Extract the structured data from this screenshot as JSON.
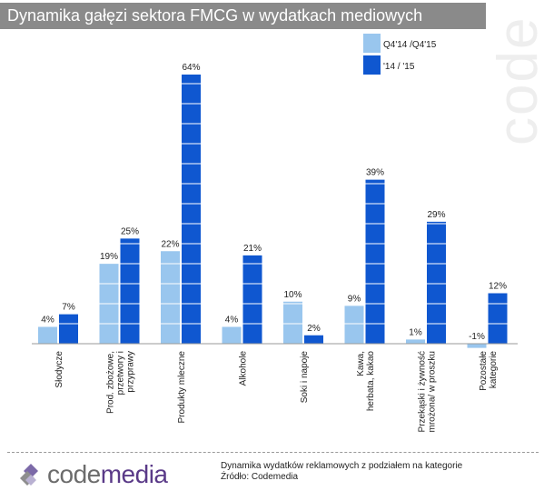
{
  "title": "Dynamika gałęzi sektora FMCG w wydatkach mediowych",
  "colors": {
    "series1": "#99c6ee",
    "series2": "#0f57d0",
    "title_bg": "#8a8a8a",
    "logo_purple": "#5a3a88",
    "logo_grey": "#6c6c6c"
  },
  "chart_data": {
    "type": "bar",
    "title": "Dynamika gałęzi sektora FMCG w wydatkach mediowych",
    "categories": [
      [
        "Słodycze"
      ],
      [
        "Prod. zbożowe,",
        "przetwory i",
        "przyprawy"
      ],
      [
        "Produkty mleczne"
      ],
      [
        "Alkohole"
      ],
      [
        "Soki i napoje"
      ],
      [
        "Kawa,",
        "herbata, kakao"
      ],
      [
        "Przekąski i żywność",
        "mrożona/ w proszku"
      ],
      [
        "Pozostałe",
        "kategorie"
      ]
    ],
    "series": [
      {
        "name": "Q4'14 /Q4'15",
        "values": [
          4,
          19,
          22,
          4,
          10,
          9,
          1,
          -1
        ]
      },
      {
        "name": "'14 / '15",
        "values": [
          7,
          25,
          64,
          21,
          2,
          39,
          29,
          12
        ]
      }
    ],
    "data_labels": [
      [
        "4%",
        "19%",
        "22%",
        "4%",
        "10%",
        "9%",
        "1%",
        "-1%"
      ],
      [
        "7%",
        "25%",
        "64%",
        "21%",
        "2%",
        "39%",
        "29%",
        "12%"
      ]
    ],
    "ylim": [
      -1,
      64
    ],
    "legend_position": "top-right",
    "grid": false
  },
  "legend": {
    "series1_label": "Q4'14 /Q4'15",
    "series2_label": "'14 / '15"
  },
  "watermark": "code",
  "footer": {
    "logo_code": "code",
    "logo_media": "media",
    "note_line1": "Dynamika  wydatków reklamowych z podziałem na kategorie",
    "note_line2": "Źródło: Codemedia"
  }
}
